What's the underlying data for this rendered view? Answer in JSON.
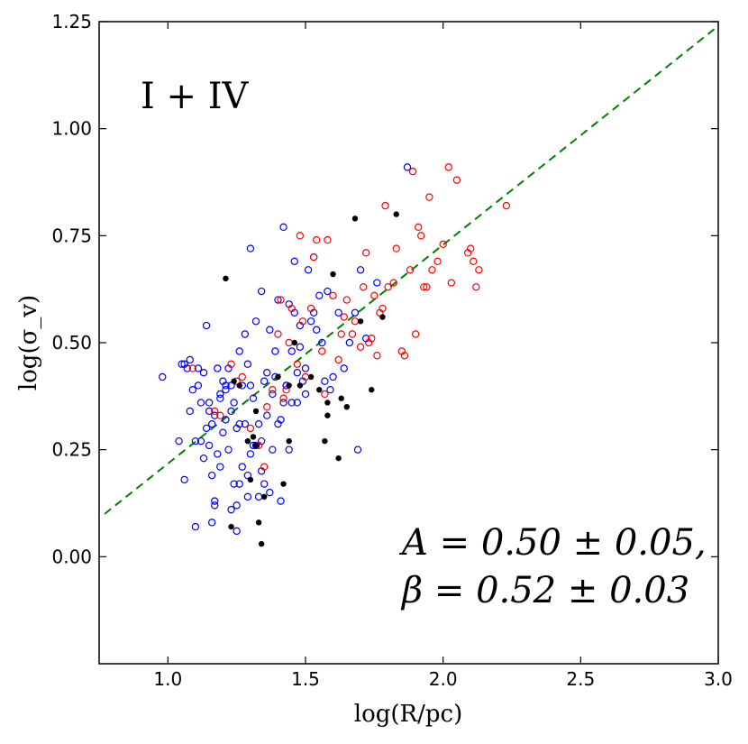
{
  "chart_data": {
    "type": "scatter",
    "title": "",
    "panel_label": "I + IV",
    "xlabel": "log(R/pc)",
    "ylabel": "log(σ_v)",
    "xlim": [
      0.75,
      3.0
    ],
    "ylim": [
      -0.25,
      1.25
    ],
    "xticks": [
      1.0,
      1.5,
      2.0,
      2.5,
      3.0
    ],
    "xtick_labels": [
      "1.0",
      "1.5",
      "2.0",
      "2.5",
      "3.0"
    ],
    "yticks": [
      0.0,
      0.25,
      0.5,
      0.75,
      1.0,
      1.25
    ],
    "ytick_labels": [
      "0.00",
      "0.25",
      "0.50",
      "0.75",
      "1.00",
      "1.25"
    ],
    "grid": false,
    "colors": {
      "blue": "#0000ff",
      "red": "#ff0000",
      "black": "#000000",
      "fit": "#008000"
    },
    "fit_line": {
      "style": "dashed",
      "x": [
        0.77,
        3.0
      ],
      "y": [
        0.1,
        1.24
      ]
    },
    "annotation": {
      "line1": "A = 0.50 ± 0.05,",
      "line2": "β = 0.52 ± 0.03"
    },
    "series": [
      {
        "name": "blue open",
        "marker": "open-circle",
        "color": "#0000ff",
        "x": [
          0.98,
          1.04,
          1.06,
          1.06,
          1.07,
          1.08,
          1.09,
          1.1,
          1.1,
          1.11,
          1.12,
          1.13,
          1.14,
          1.14,
          1.15,
          1.15,
          1.16,
          1.16,
          1.17,
          1.17,
          1.18,
          1.18,
          1.19,
          1.19,
          1.2,
          1.2,
          1.21,
          1.21,
          1.22,
          1.22,
          1.23,
          1.23,
          1.24,
          1.24,
          1.25,
          1.25,
          1.26,
          1.26,
          1.27,
          1.27,
          1.28,
          1.28,
          1.29,
          1.29,
          1.3,
          1.3,
          1.31,
          1.31,
          1.32,
          1.32,
          1.33,
          1.33,
          1.34,
          1.34,
          1.35,
          1.35,
          1.36,
          1.36,
          1.37,
          1.37,
          1.38,
          1.38,
          1.39,
          1.39,
          1.4,
          1.4,
          1.41,
          1.41,
          1.42,
          1.42,
          1.43,
          1.44,
          1.44,
          1.45,
          1.45,
          1.46,
          1.46,
          1.47,
          1.48,
          1.48,
          1.49,
          1.5,
          1.5,
          1.51,
          1.52,
          1.53,
          1.53,
          1.54,
          1.55,
          1.56,
          1.57,
          1.58,
          1.59,
          1.6,
          1.62,
          1.64,
          1.66,
          1.68,
          1.69,
          1.7,
          1.72,
          1.05,
          1.08,
          1.12,
          1.17,
          1.19,
          1.21,
          1.23,
          1.26,
          1.29,
          1.34,
          1.87,
          1.76,
          1.43,
          1.47,
          1.3,
          1.15,
          1.11,
          1.13,
          1.16,
          1.25
        ],
        "y": [
          0.42,
          0.27,
          0.45,
          0.18,
          0.44,
          0.46,
          0.39,
          0.27,
          0.07,
          0.44,
          0.36,
          0.23,
          0.54,
          0.3,
          0.36,
          0.26,
          0.08,
          0.19,
          0.13,
          0.33,
          0.44,
          0.24,
          0.38,
          0.21,
          0.41,
          0.29,
          0.39,
          0.32,
          0.25,
          0.44,
          0.11,
          0.4,
          0.36,
          0.17,
          0.3,
          0.12,
          0.48,
          0.17,
          0.4,
          0.21,
          0.52,
          0.31,
          0.45,
          0.14,
          0.72,
          0.4,
          0.37,
          0.26,
          0.55,
          0.26,
          0.31,
          0.14,
          0.62,
          0.2,
          0.41,
          0.17,
          0.43,
          0.33,
          0.53,
          0.15,
          0.38,
          0.25,
          0.48,
          0.42,
          0.6,
          0.31,
          0.32,
          0.13,
          0.77,
          0.36,
          0.4,
          0.59,
          0.25,
          0.48,
          0.36,
          0.57,
          0.69,
          0.43,
          0.54,
          0.49,
          0.41,
          0.44,
          0.38,
          0.67,
          0.55,
          0.7,
          0.57,
          0.53,
          0.61,
          0.5,
          0.41,
          0.62,
          0.39,
          0.42,
          0.57,
          0.44,
          0.5,
          0.57,
          0.25,
          0.67,
          0.51,
          0.45,
          0.34,
          0.27,
          0.12,
          0.37,
          0.4,
          0.34,
          0.31,
          0.19,
          0.27,
          0.91,
          0.64,
          0.4,
          0.36,
          0.24,
          0.34,
          0.4,
          0.43,
          0.31,
          0.06
        ]
      },
      {
        "name": "red open",
        "marker": "open-circle",
        "color": "#ff0000",
        "x": [
          1.09,
          1.17,
          1.19,
          1.23,
          1.25,
          1.27,
          1.3,
          1.33,
          1.35,
          1.38,
          1.4,
          1.42,
          1.43,
          1.44,
          1.45,
          1.47,
          1.48,
          1.5,
          1.52,
          1.53,
          1.54,
          1.56,
          1.58,
          1.6,
          1.62,
          1.64,
          1.65,
          1.67,
          1.68,
          1.7,
          1.71,
          1.72,
          1.73,
          1.74,
          1.75,
          1.76,
          1.77,
          1.78,
          1.79,
          1.8,
          1.82,
          1.83,
          1.85,
          1.86,
          1.88,
          1.89,
          1.9,
          1.91,
          1.92,
          1.93,
          1.94,
          1.95,
          1.96,
          1.98,
          2.0,
          2.02,
          2.03,
          2.05,
          2.09,
          2.1,
          2.11,
          2.12,
          2.13,
          2.23,
          1.36,
          1.49,
          1.57,
          1.63,
          1.41
        ],
        "y": [
          0.44,
          0.34,
          0.33,
          0.45,
          0.41,
          0.42,
          0.3,
          0.26,
          0.21,
          0.39,
          0.52,
          0.37,
          0.39,
          0.5,
          0.58,
          0.45,
          0.75,
          0.42,
          0.58,
          0.7,
          0.74,
          0.48,
          0.74,
          0.61,
          0.46,
          0.56,
          0.6,
          0.52,
          0.55,
          0.49,
          0.63,
          0.71,
          0.5,
          0.51,
          0.61,
          0.47,
          0.57,
          0.58,
          0.82,
          0.63,
          0.64,
          0.72,
          0.48,
          0.47,
          0.67,
          0.9,
          0.52,
          0.77,
          0.75,
          0.63,
          0.63,
          0.84,
          0.67,
          0.69,
          0.73,
          0.91,
          0.64,
          0.88,
          0.71,
          0.72,
          0.69,
          0.63,
          0.67,
          0.82,
          0.35,
          0.55,
          0.38,
          0.52,
          0.6
        ]
      },
      {
        "name": "black filled",
        "marker": "filled-circle",
        "color": "#000000",
        "x": [
          1.21,
          1.23,
          1.24,
          1.26,
          1.29,
          1.3,
          1.32,
          1.33,
          1.34,
          1.35,
          1.4,
          1.42,
          1.44,
          1.46,
          1.48,
          1.52,
          1.55,
          1.57,
          1.58,
          1.6,
          1.62,
          1.63,
          1.65,
          1.68,
          1.7,
          1.74,
          1.78,
          1.83,
          1.44,
          1.58,
          1.32,
          1.31
        ],
        "y": [
          0.65,
          0.07,
          0.41,
          0.4,
          0.27,
          0.18,
          0.34,
          0.08,
          0.03,
          0.14,
          0.42,
          0.17,
          0.27,
          0.5,
          0.4,
          0.42,
          0.39,
          0.27,
          0.33,
          0.66,
          0.23,
          0.37,
          0.35,
          0.79,
          0.55,
          0.39,
          0.56,
          0.8,
          0.4,
          0.36,
          0.26,
          0.28
        ]
      }
    ]
  }
}
